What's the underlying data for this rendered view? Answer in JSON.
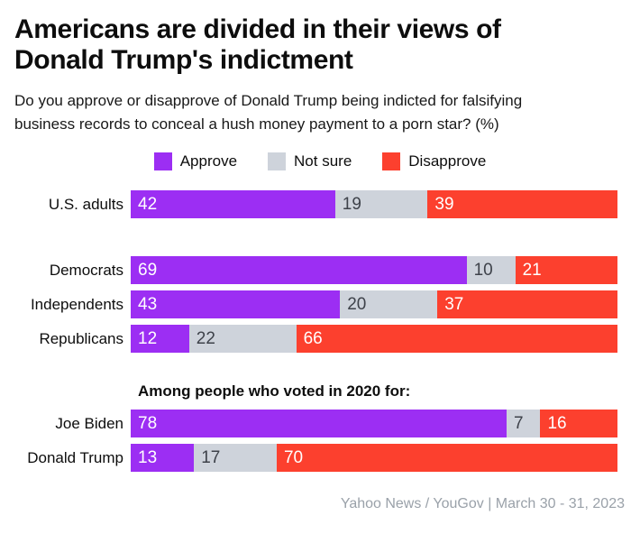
{
  "title_lines": [
    "Americans are divided in their views of",
    "Donald Trump's indictment"
  ],
  "subtitle": "Do you approve or disapprove of Donald Trump being indicted for falsifying business records to conceal a hush money payment to a porn star? (%)",
  "subtitle_lines": [
    "Do you approve or disapprove of Donald Trump being indicted for falsifying",
    "business records to conceal a hush money payment to a porn star? (%)"
  ],
  "legend": [
    {
      "label": "Approve",
      "color": "#9c2ef3"
    },
    {
      "label": "Not sure",
      "color": "#ced3db"
    },
    {
      "label": "Disapprove",
      "color": "#fc402e"
    }
  ],
  "section_heading": "Among people who voted in 2020 for:",
  "footer": {
    "source": "Yahoo News / YouGov | March 30 - 31, 2023"
  },
  "chart_data": {
    "type": "bar",
    "stacked": true,
    "orientation": "horizontal",
    "title": "Americans are divided in their views of Donald Trump's indictment",
    "subtitle": "Do you approve or disapprove of Donald Trump being indicted for falsifying business records to conceal a hush money payment to a porn star? (%)",
    "xlim": [
      0,
      100
    ],
    "grid": false,
    "legend_position": "top-center",
    "categories": [
      "U.S. adults",
      "Democrats",
      "Independents",
      "Republicans",
      "Joe Biden",
      "Donald Trump"
    ],
    "groups": [
      {
        "heading": null,
        "category_indexes": [
          0
        ]
      },
      {
        "heading": null,
        "category_indexes": [
          1,
          2,
          3
        ]
      },
      {
        "heading": "Among people who voted in 2020 for:",
        "category_indexes": [
          4,
          5
        ]
      }
    ],
    "series": [
      {
        "name": "Approve",
        "color": "#9c2ef3",
        "values": [
          42,
          69,
          43,
          12,
          78,
          13
        ]
      },
      {
        "name": "Not sure",
        "color": "#ced3db",
        "values": [
          19,
          10,
          20,
          22,
          7,
          17
        ]
      },
      {
        "name": "Disapprove",
        "color": "#fc402e",
        "values": [
          39,
          21,
          37,
          66,
          16,
          70
        ]
      }
    ]
  }
}
